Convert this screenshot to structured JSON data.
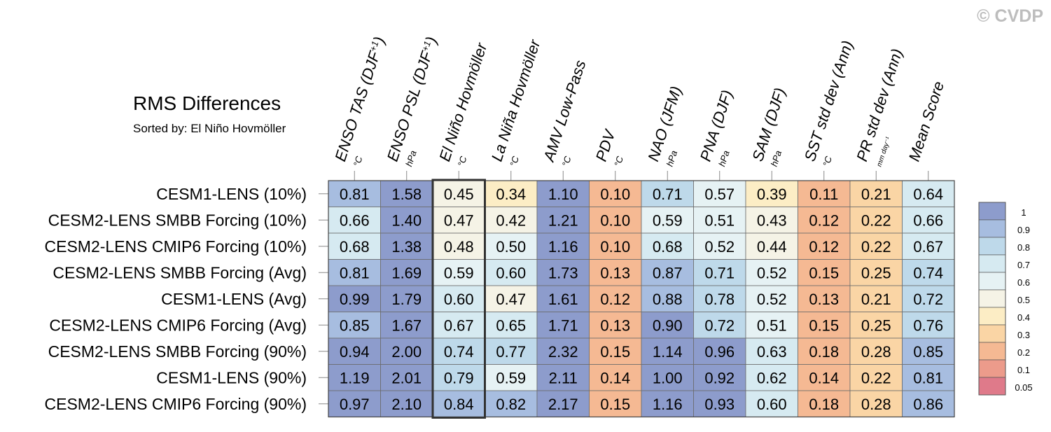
{
  "watermark": "© CVDP",
  "chart_data": {
    "type": "heatmap",
    "title": "RMS Differences",
    "subtitle": "Sorted by: El Niño Hovmöller",
    "highlight_column": "El Niño Hovmöller",
    "columns": [
      {
        "label": "ENSO TAS (DJF",
        "sup": "+1",
        "close": ")",
        "unit": "°C"
      },
      {
        "label": "ENSO PSL (DJF",
        "sup": "+1",
        "close": ")",
        "unit": "hPa"
      },
      {
        "label": "El Niño Hovmöller",
        "sup": "",
        "close": "",
        "unit": "°C"
      },
      {
        "label": "La Niña Hovmöller",
        "sup": "",
        "close": "",
        "unit": "°C"
      },
      {
        "label": "AMV Low-Pass",
        "sup": "",
        "close": "",
        "unit": "°C"
      },
      {
        "label": "PDV",
        "sup": "",
        "close": "",
        "unit": "°C"
      },
      {
        "label": "NAO (JFM)",
        "sup": "",
        "close": "",
        "unit": "hPa"
      },
      {
        "label": "PNA (DJF)",
        "sup": "",
        "close": "",
        "unit": "hPa"
      },
      {
        "label": "SAM (DJF)",
        "sup": "",
        "close": "",
        "unit": "hPa"
      },
      {
        "label": "SST std dev (Ann)",
        "sup": "",
        "close": "",
        "unit": "°C"
      },
      {
        "label": "PR std dev (Ann)",
        "sup": "",
        "close": "",
        "unit": "mm day⁻¹"
      },
      {
        "label": "Mean Score",
        "sup": "",
        "close": "",
        "unit": ""
      }
    ],
    "rows": [
      {
        "name": "CESM1-LENS (10%)",
        "values": [
          "0.81",
          "1.58",
          "0.45",
          "0.34",
          "1.10",
          "0.10",
          "0.71",
          "0.57",
          "0.39",
          "0.11",
          "0.21",
          "0.64"
        ]
      },
      {
        "name": "CESM2-LENS SMBB Forcing (10%)",
        "values": [
          "0.66",
          "1.40",
          "0.47",
          "0.42",
          "1.21",
          "0.10",
          "0.59",
          "0.51",
          "0.43",
          "0.12",
          "0.22",
          "0.66"
        ]
      },
      {
        "name": "CESM2-LENS CMIP6 Forcing (10%)",
        "values": [
          "0.68",
          "1.38",
          "0.48",
          "0.50",
          "1.16",
          "0.10",
          "0.68",
          "0.52",
          "0.44",
          "0.12",
          "0.22",
          "0.67"
        ]
      },
      {
        "name": "CESM2-LENS SMBB Forcing (Avg)",
        "values": [
          "0.81",
          "1.69",
          "0.59",
          "0.60",
          "1.73",
          "0.13",
          "0.87",
          "0.71",
          "0.52",
          "0.15",
          "0.25",
          "0.74"
        ]
      },
      {
        "name": "CESM1-LENS (Avg)",
        "values": [
          "0.99",
          "1.79",
          "0.60",
          "0.47",
          "1.61",
          "0.12",
          "0.88",
          "0.78",
          "0.52",
          "0.13",
          "0.21",
          "0.72"
        ]
      },
      {
        "name": "CESM2-LENS CMIP6 Forcing (Avg)",
        "values": [
          "0.85",
          "1.67",
          "0.67",
          "0.65",
          "1.71",
          "0.13",
          "0.90",
          "0.72",
          "0.51",
          "0.15",
          "0.25",
          "0.76"
        ]
      },
      {
        "name": "CESM2-LENS SMBB Forcing (90%)",
        "values": [
          "0.94",
          "2.00",
          "0.74",
          "0.77",
          "2.32",
          "0.15",
          "1.14",
          "0.96",
          "0.63",
          "0.18",
          "0.28",
          "0.85"
        ]
      },
      {
        "name": "CESM1-LENS (90%)",
        "values": [
          "1.19",
          "2.01",
          "0.79",
          "0.59",
          "2.11",
          "0.14",
          "1.00",
          "0.92",
          "0.62",
          "0.14",
          "0.22",
          "0.81"
        ]
      },
      {
        "name": "CESM2-LENS CMIP6 Forcing (90%)",
        "values": [
          "0.97",
          "2.10",
          "0.84",
          "0.82",
          "2.17",
          "0.15",
          "1.16",
          "0.93",
          "0.60",
          "0.18",
          "0.28",
          "0.86"
        ]
      }
    ],
    "colorbar": {
      "ticks": [
        "1",
        "0.9",
        "0.8",
        "0.7",
        "0.6",
        "0.5",
        "0.4",
        "0.3",
        "0.2",
        "0.1",
        "0.05"
      ],
      "bin_colors": [
        "#8d9ccc",
        "#a7bde0",
        "#bed9ea",
        "#d6eaf1",
        "#e6f2f4",
        "#f5f3e6",
        "#fcedc5",
        "#fad5a5",
        "#f5b993",
        "#ec9b8b",
        "#df7a8a"
      ]
    }
  }
}
